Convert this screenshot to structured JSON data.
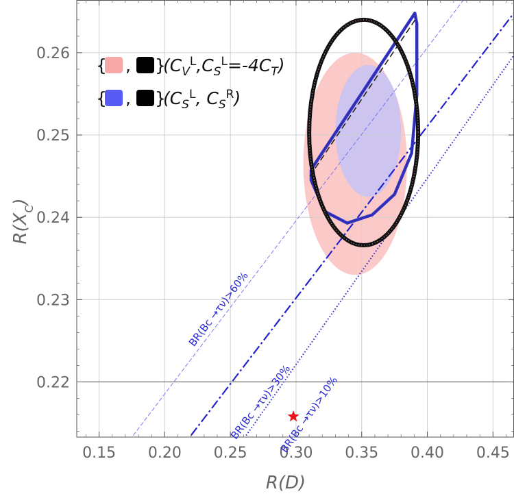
{
  "chart_data": {
    "type": "scatter",
    "xlabel": "R(D)",
    "ylabel": "R(X_C)",
    "xlim": [
      0.133,
      0.466
    ],
    "ylim": [
      0.2133,
      0.2664
    ],
    "grid": true,
    "x_ticks": [
      0.15,
      0.2,
      0.25,
      0.3,
      0.35,
      0.4,
      0.45
    ],
    "x_tick_labels": [
      "0.15",
      "0.20",
      "0.25",
      "0.30",
      "0.35",
      "0.40",
      "0.45"
    ],
    "y_ticks": [
      0.22,
      0.23,
      0.24,
      0.25,
      0.26
    ],
    "y_tick_labels": [
      "0.22",
      "0.23",
      "0.24",
      "0.25",
      "0.26"
    ],
    "reference_line_y": 0.22,
    "sm_point": {
      "x": 0.298,
      "y": 0.2158,
      "marker": "star",
      "color": "#e8141c"
    },
    "legend": {
      "placement": "top-left",
      "entries": [
        {
          "prefix": "{",
          "sep": ",",
          "suffix": "}",
          "swatch_colors": [
            "#f7a9a9",
            "#000000"
          ],
          "label_parts": [
            {
              "t": "(C"
            },
            {
              "t": "V",
              "sub": true
            },
            {
              "t": "L",
              "sup": true
            },
            {
              "t": ",C"
            },
            {
              "t": "S",
              "sub": true
            },
            {
              "t": "L",
              "sup": true
            },
            {
              "t": "=-4C"
            },
            {
              "t": "T",
              "sub": true
            },
            {
              "t": ")"
            }
          ]
        },
        {
          "prefix": "{",
          "sep": ",",
          "suffix": "}",
          "swatch_colors": [
            "#5a5af5",
            "#000000"
          ],
          "label_parts": [
            {
              "t": "(C"
            },
            {
              "t": "S",
              "sub": true
            },
            {
              "t": "L",
              "sup": true
            },
            {
              "t": ", C"
            },
            {
              "t": "S",
              "sub": true
            },
            {
              "t": "R",
              "sup": true
            },
            {
              "t": ")"
            }
          ]
        }
      ]
    },
    "regions": [
      {
        "name": "CVL-CSL-4CT 2sigma",
        "color": "#fcc6c6",
        "center": [
          0.345,
          0.2465
        ],
        "rx": 0.0395,
        "ry": 0.0135
      },
      {
        "name": "CSL-CSR 2sigma",
        "color": "#c8c3f4",
        "center": [
          0.355,
          0.2505
        ],
        "rx": 0.025,
        "ry": 0.008
      }
    ],
    "ellipse_boundary": {
      "color": "#111111",
      "center": [
        0.3515,
        0.2503
      ],
      "rx": 0.0415,
      "ry": 0.0137
    },
    "blue_boundary": [
      [
        0.3115,
        0.2458
      ],
      [
        0.3115,
        0.2445
      ],
      [
        0.322,
        0.2407
      ],
      [
        0.339,
        0.2393
      ],
      [
        0.358,
        0.2403
      ],
      [
        0.375,
        0.2428
      ],
      [
        0.388,
        0.2478
      ],
      [
        0.392,
        0.2548
      ],
      [
        0.392,
        0.2635
      ],
      [
        0.3905,
        0.2648
      ],
      [
        0.3115,
        0.2458
      ]
    ],
    "dashed_black_line": [
      [
        0.3105,
        0.245
      ],
      [
        0.392,
        0.2643
      ]
    ],
    "contours": [
      {
        "label": "BR(Bc →τν)>60%",
        "style": "thin-dash",
        "color": "#6c6cf0",
        "x": [
          0.176,
          0.428
        ],
        "y": [
          0.2135,
          0.2665
        ]
      },
      {
        "label": "BR(Bc →τν)>30%",
        "style": "dash",
        "color": "#2222cc",
        "x": [
          0.22,
          0.474
        ],
        "y": [
          0.2135,
          0.2665
        ]
      },
      {
        "label": "BR(Bc →τν)>10%",
        "style": "dot",
        "color": "#2222cc",
        "x": [
          0.262,
          0.496
        ],
        "y": [
          0.2135,
          0.2665
        ]
      }
    ]
  }
}
